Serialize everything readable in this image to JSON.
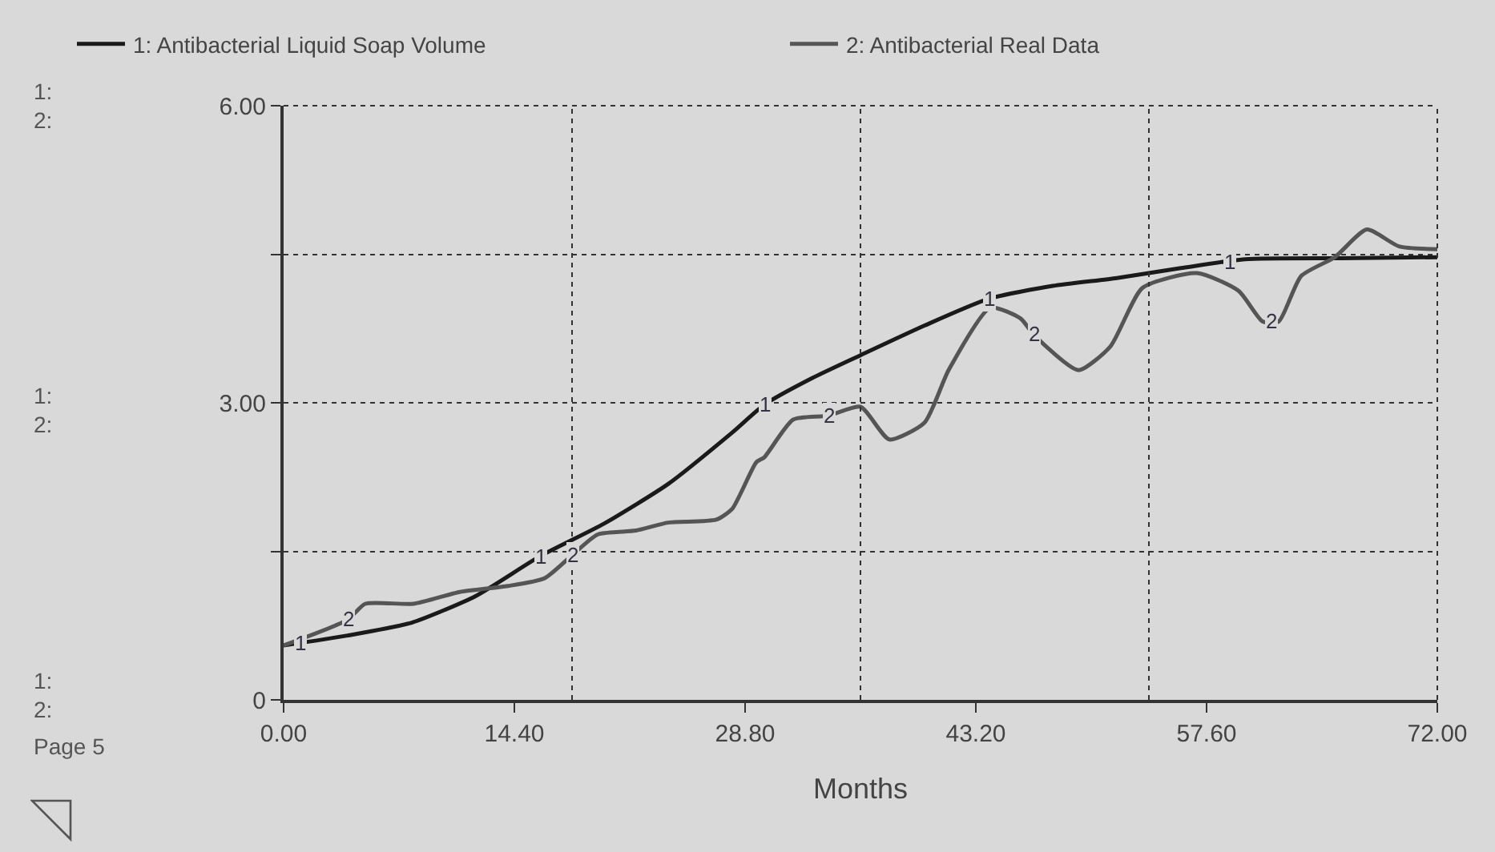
{
  "chart_data": {
    "type": "line",
    "xlabel": "Months",
    "x": [
      0,
      4,
      8,
      12,
      16,
      20,
      24,
      28,
      30,
      33,
      36,
      40,
      44,
      48,
      52,
      56,
      60,
      66,
      72
    ],
    "series": [
      {
        "name": "1: Antibacterial Liquid Soap Volume",
        "color": "#1a1a1a",
        "values": [
          0.55,
          0.65,
          0.78,
          1.05,
          1.45,
          1.78,
          2.18,
          2.7,
          2.98,
          3.25,
          3.48,
          3.78,
          4.05,
          4.18,
          4.26,
          4.36,
          4.45,
          4.46,
          4.47
        ]
      },
      {
        "name": "2: Antibacterial Real Data",
        "color": "#555555",
        "x": [
          0,
          4,
          5.1,
          8.1,
          11,
          14,
          16.3,
          18,
          19.6,
          22,
          24,
          27,
          28,
          29.5,
          30,
          31.8,
          34,
          36,
          37.8,
          40,
          41.5,
          44.1,
          46,
          46.8,
          49.6,
          51.6,
          53.6,
          57,
          59.6,
          61.1,
          62.1,
          63.5,
          65.6,
          67.6,
          69.6,
          72
        ],
        "values": [
          0.55,
          0.81,
          0.97,
          0.97,
          1.09,
          1.15,
          1.23,
          1.46,
          1.67,
          1.71,
          1.79,
          1.82,
          1.93,
          2.4,
          2.45,
          2.83,
          2.87,
          2.96,
          2.63,
          2.8,
          3.33,
          3.96,
          3.85,
          3.69,
          3.33,
          3.57,
          4.16,
          4.31,
          4.13,
          3.82,
          3.82,
          4.28,
          4.47,
          4.75,
          4.58,
          4.55
        ]
      }
    ],
    "xlim": [
      0,
      72
    ],
    "xticks": [
      {
        "value": 0,
        "label": "0.00"
      },
      {
        "value": 14.4,
        "label": "14.40"
      },
      {
        "value": 28.8,
        "label": "28.80"
      },
      {
        "value": 43.2,
        "label": "43.20"
      },
      {
        "value": 57.6,
        "label": "57.60"
      },
      {
        "value": 72,
        "label": "72.00"
      }
    ],
    "ylim": [
      0,
      6
    ],
    "yticks": [
      0,
      {
        "value": 1.5,
        "label": null
      },
      {
        "value": 3,
        "label": "3.00"
      },
      {
        "value": 4.5,
        "label": null
      },
      {
        "value": 6,
        "label": "6.00"
      }
    ],
    "grid": "y",
    "legend": "top",
    "marker": "none",
    "line_style": "solid",
    "ref_lines": [
      {
        "axis": "x",
        "value": 18,
        "color": "#333333",
        "line_style": "dotted"
      },
      {
        "axis": "x",
        "value": 36,
        "color": "#333333",
        "line_style": "dotted"
      },
      {
        "axis": "x",
        "value": 54,
        "color": "#333333",
        "line_style": "dotted"
      }
    ],
    "annotations": [
      "1:\n2:",
      "1:\n2:",
      "1:\n2:",
      "Page 5",
      {
        "text": "1",
        "x": 1,
        "y": 0.58
      },
      {
        "text": "1",
        "x": 16,
        "y": 1.45
      },
      {
        "text": "1",
        "x": 30,
        "y": 2.98
      },
      {
        "text": "1",
        "x": 44,
        "y": 4.05
      },
      {
        "text": "1",
        "x": 59,
        "y": 4.43
      },
      {
        "text": "2",
        "x": 4,
        "y": 0.81
      },
      {
        "text": "2",
        "x": 18,
        "y": 1.46
      },
      {
        "text": "2",
        "x": 34,
        "y": 2.87
      },
      {
        "text": "2",
        "x": 46.8,
        "y": 3.69
      },
      {
        "text": "2",
        "x": 61.6,
        "y": 3.82
      }
    ]
  }
}
